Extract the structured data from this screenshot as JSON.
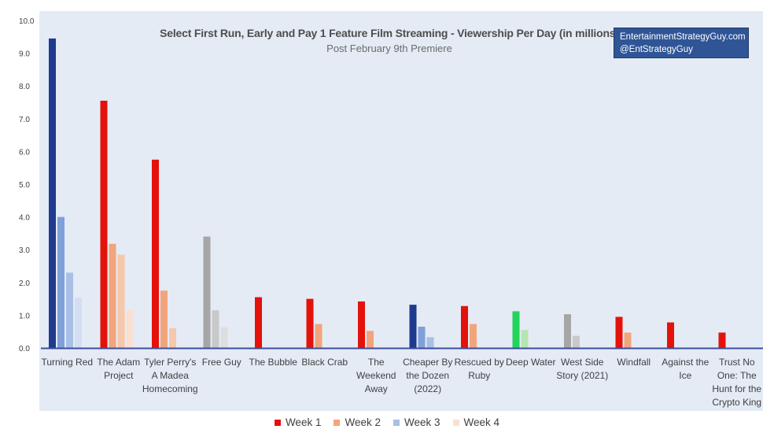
{
  "chart_data": {
    "type": "bar",
    "title": "Select First Run, Early and Pay 1 Feature Film Streaming - Viewership Per Day (in millions)",
    "subtitle": "Post February 9th Premiere",
    "ylim": [
      0,
      10
    ],
    "yticks": [
      "0.0",
      "1.0",
      "2.0",
      "3.0",
      "4.0",
      "5.0",
      "6.0",
      "7.0",
      "8.0",
      "9.0",
      "10.0"
    ],
    "legend_position": "bottom",
    "grid": false,
    "categories": [
      "Turning Red",
      "The Adam Project",
      "Tyler Perry's A Madea Homecoming",
      "Free Guy",
      "The Bubble",
      "Black Crab",
      "The Weekend Away",
      "Cheaper By the Dozen (2022)",
      "Rescued by Ruby",
      "Deep Water",
      "West Side Story (2021)",
      "Windfall",
      "Against the Ice",
      "Trust No One: The Hunt for the Crypto King"
    ],
    "category_lines": [
      [
        "Turning Red"
      ],
      [
        "The Adam",
        "Project"
      ],
      [
        "Tyler Perry's",
        "A Madea",
        "Homecoming"
      ],
      [
        "Free Guy"
      ],
      [
        "The Bubble"
      ],
      [
        "Black Crab"
      ],
      [
        "The",
        "Weekend",
        "Away"
      ],
      [
        "Cheaper By",
        "the Dozen",
        "(2022)"
      ],
      [
        "Rescued by",
        "Ruby"
      ],
      [
        "Deep Water"
      ],
      [
        "West Side",
        "Story (2021)"
      ],
      [
        "Windfall"
      ],
      [
        "Against the",
        "Ice"
      ],
      [
        "Trust No",
        "One: The",
        "Hunt for the",
        "Crypto King"
      ]
    ],
    "series": [
      {
        "name": "Week 1",
        "values": [
          9.45,
          7.55,
          5.75,
          3.4,
          1.55,
          1.5,
          1.42,
          1.32,
          1.28,
          1.12,
          1.03,
          0.95,
          0.78,
          0.47
        ]
      },
      {
        "name": "Week 2",
        "values": [
          4.0,
          3.18,
          1.75,
          1.15,
          null,
          0.73,
          0.52,
          0.65,
          0.73,
          0.55,
          0.37,
          0.47,
          null,
          null
        ]
      },
      {
        "name": "Week 3",
        "values": [
          2.3,
          2.85,
          0.6,
          0.63,
          null,
          null,
          null,
          0.33,
          null,
          null,
          null,
          null,
          null,
          null
        ]
      },
      {
        "name": "Week 4",
        "values": [
          1.53,
          1.15,
          null,
          null,
          null,
          null,
          null,
          null,
          null,
          null,
          null,
          null,
          null,
          null
        ]
      }
    ],
    "bar_palettes": [
      [
        "#1f3a8f",
        "#7fa0d8",
        "#a9bfe6",
        "#d2def4"
      ],
      [
        "#e3120b",
        "#f2a47c",
        "#f6c7aa",
        "#fae0d1"
      ],
      [
        "#e3120b",
        "#f2a47c",
        "#f6c7aa",
        "#fae0d1"
      ],
      [
        "#a6a6a6",
        "#c9c9c9",
        "#dedede",
        "#eeeeee"
      ],
      [
        "#e3120b",
        "#f2a47c",
        "#f6c7aa",
        "#fae0d1"
      ],
      [
        "#e3120b",
        "#f2a47c",
        "#f6c7aa",
        "#fae0d1"
      ],
      [
        "#e3120b",
        "#f2a47c",
        "#f6c7aa",
        "#fae0d1"
      ],
      [
        "#1f3a8f",
        "#7fa0d8",
        "#a9bfe6",
        "#d2def4"
      ],
      [
        "#e3120b",
        "#f2a47c",
        "#f6c7aa",
        "#fae0d1"
      ],
      [
        "#22d35c",
        "#b7e5b0",
        "#d4f0ce",
        "#e8f8e4"
      ],
      [
        "#a6a6a6",
        "#c9c9c9",
        "#dedede",
        "#eeeeee"
      ],
      [
        "#e3120b",
        "#f2a47c",
        "#f6c7aa",
        "#fae0d1"
      ],
      [
        "#e3120b",
        "#f2a47c",
        "#f6c7aa",
        "#fae0d1"
      ],
      [
        "#e3120b",
        "#f2a47c",
        "#f6c7aa",
        "#fae0d1"
      ]
    ],
    "legend_colors": [
      "#e3120b",
      "#f2a47c",
      "#a9bfe6",
      "#fae0d1"
    ]
  },
  "branding": {
    "line1": "EntertainmentStrategyGuy.com",
    "line2": "@EntStrategyGuy"
  },
  "colors": {
    "plot_background": "#e4ebf5",
    "axis": "#3b4e9e"
  }
}
